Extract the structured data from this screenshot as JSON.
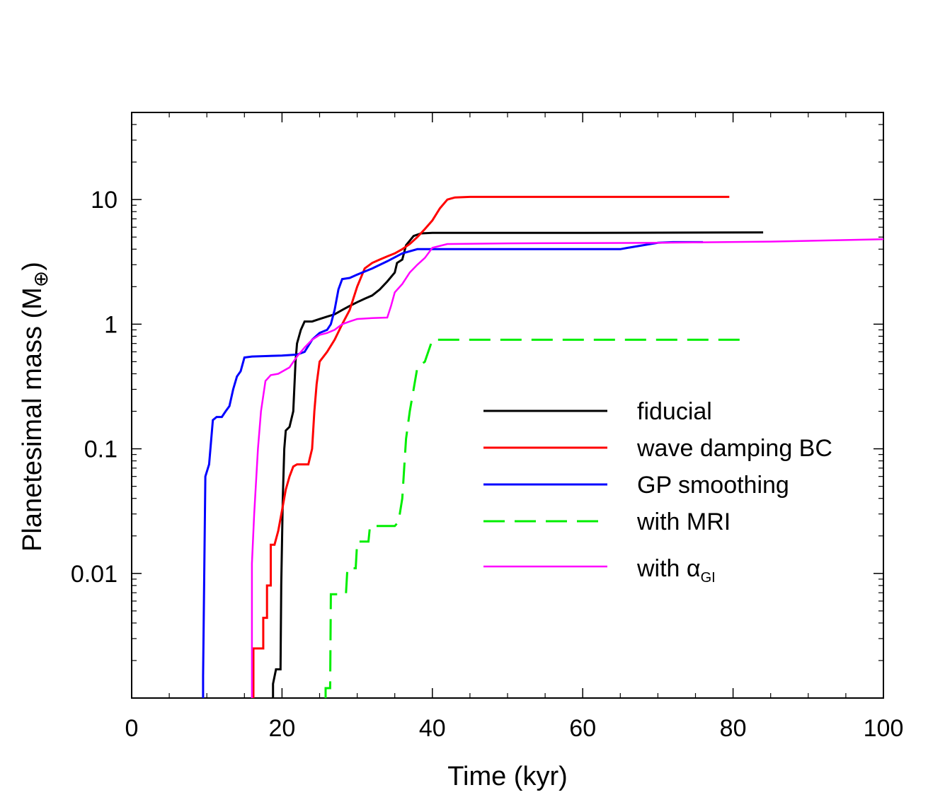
{
  "chart_data": {
    "type": "line",
    "title": "",
    "xlabel": "Time (kyr)",
    "ylabel_main": "Planetesimal mass (M",
    "ylabel_symbol": "⊕",
    "ylabel_close": ")",
    "xlim": [
      0,
      100
    ],
    "ylim": [
      0.001,
      50
    ],
    "yscale": "log",
    "x_ticks": [
      0,
      20,
      40,
      60,
      80,
      100
    ],
    "x_tick_labels": [
      "0",
      "20",
      "40",
      "60",
      "80",
      "100"
    ],
    "y_ticks": [
      0.01,
      0.1,
      1,
      10
    ],
    "y_tick_labels": [
      "0.01",
      "0.1",
      "1",
      "10"
    ],
    "legend_position": "center-right",
    "series": [
      {
        "name": "fiducial",
        "legend_label": "fiducial",
        "color": "#000000",
        "dash": "solid",
        "width": 3,
        "points": [
          [
            18.8,
            0.001
          ],
          [
            18.8,
            0.0013
          ],
          [
            19.2,
            0.0017
          ],
          [
            19.8,
            0.0017
          ],
          [
            19.9,
            0.008
          ],
          [
            20.1,
            0.04
          ],
          [
            20.3,
            0.1
          ],
          [
            20.5,
            0.14
          ],
          [
            21,
            0.15
          ],
          [
            21.5,
            0.2
          ],
          [
            21.8,
            0.5
          ],
          [
            22,
            0.7
          ],
          [
            22.5,
            0.9
          ],
          [
            23,
            1.05
          ],
          [
            24,
            1.05
          ],
          [
            25,
            1.1
          ],
          [
            26,
            1.15
          ],
          [
            27,
            1.2
          ],
          [
            28,
            1.3
          ],
          [
            29,
            1.4
          ],
          [
            30,
            1.5
          ],
          [
            31,
            1.6
          ],
          [
            32,
            1.7
          ],
          [
            33,
            1.9
          ],
          [
            34,
            2.2
          ],
          [
            35,
            2.6
          ],
          [
            35.3,
            3.1
          ],
          [
            36,
            3.3
          ],
          [
            36.5,
            4.3
          ],
          [
            37.5,
            5.1
          ],
          [
            38.5,
            5.35
          ],
          [
            40,
            5.4
          ],
          [
            60,
            5.4
          ],
          [
            84,
            5.45
          ]
        ]
      },
      {
        "name": "wave damping BC",
        "legend_label": "wave damping BC",
        "color": "#ff0000",
        "dash": "solid",
        "width": 3,
        "points": [
          [
            16.2,
            0.001
          ],
          [
            16.2,
            0.0025
          ],
          [
            17.5,
            0.0025
          ],
          [
            17.5,
            0.0044
          ],
          [
            18,
            0.0044
          ],
          [
            18,
            0.008
          ],
          [
            18.5,
            0.008
          ],
          [
            18.5,
            0.017
          ],
          [
            19,
            0.017
          ],
          [
            19.5,
            0.022
          ],
          [
            20,
            0.032
          ],
          [
            20.5,
            0.047
          ],
          [
            21,
            0.06
          ],
          [
            21.5,
            0.072
          ],
          [
            22,
            0.075
          ],
          [
            23.5,
            0.075
          ],
          [
            24,
            0.1
          ],
          [
            24.3,
            0.2
          ],
          [
            24.6,
            0.33
          ],
          [
            25,
            0.5
          ],
          [
            26,
            0.6
          ],
          [
            27,
            0.75
          ],
          [
            28,
            1.0
          ],
          [
            29,
            1.3
          ],
          [
            30,
            2.0
          ],
          [
            31,
            2.8
          ],
          [
            32,
            3.1
          ],
          [
            33,
            3.3
          ],
          [
            34,
            3.5
          ],
          [
            35,
            3.7
          ],
          [
            36,
            4.0
          ],
          [
            37,
            4.4
          ],
          [
            38,
            5.0
          ],
          [
            39,
            5.8
          ],
          [
            40,
            6.8
          ],
          [
            41,
            8.5
          ],
          [
            42,
            10.0
          ],
          [
            43,
            10.4
          ],
          [
            45,
            10.5
          ],
          [
            60,
            10.5
          ],
          [
            79.5,
            10.5
          ]
        ]
      },
      {
        "name": "GP smoothing",
        "legend_label": "GP smoothing",
        "color": "#0000ff",
        "dash": "solid",
        "width": 3,
        "points": [
          [
            9.5,
            0.001
          ],
          [
            9.5,
            0.0015
          ],
          [
            9.8,
            0.06
          ],
          [
            10.3,
            0.075
          ],
          [
            10.8,
            0.17
          ],
          [
            11.3,
            0.18
          ],
          [
            12,
            0.18
          ],
          [
            12.5,
            0.2
          ],
          [
            13,
            0.22
          ],
          [
            13.5,
            0.3
          ],
          [
            14,
            0.38
          ],
          [
            14.5,
            0.42
          ],
          [
            15,
            0.54
          ],
          [
            16,
            0.55
          ],
          [
            20,
            0.56
          ],
          [
            22,
            0.57
          ],
          [
            23,
            0.6
          ],
          [
            24,
            0.75
          ],
          [
            25,
            0.85
          ],
          [
            26,
            0.9
          ],
          [
            26.5,
            1.0
          ],
          [
            27,
            1.3
          ],
          [
            27.5,
            1.9
          ],
          [
            28,
            2.3
          ],
          [
            29,
            2.35
          ],
          [
            30,
            2.5
          ],
          [
            32,
            2.8
          ],
          [
            34,
            3.2
          ],
          [
            36,
            3.7
          ],
          [
            38,
            4.0
          ],
          [
            45,
            4.0
          ],
          [
            65,
            4.0
          ],
          [
            66,
            4.1
          ],
          [
            70,
            4.5
          ],
          [
            72,
            4.55
          ],
          [
            76,
            4.55
          ]
        ]
      },
      {
        "name": "with MRI",
        "legend_label": "with MRI",
        "color": "#00ee00",
        "dash": "dashed",
        "width": 3,
        "points": [
          [
            25.8,
            0.001
          ],
          [
            25.8,
            0.0012
          ],
          [
            26.4,
            0.0012
          ],
          [
            26.5,
            0.0068
          ],
          [
            28.5,
            0.0068
          ],
          [
            28.7,
            0.011
          ],
          [
            29.8,
            0.011
          ],
          [
            30,
            0.018
          ],
          [
            31.5,
            0.018
          ],
          [
            31.7,
            0.024
          ],
          [
            35,
            0.024
          ],
          [
            35.5,
            0.026
          ],
          [
            36,
            0.04
          ],
          [
            36.5,
            0.12
          ],
          [
            37,
            0.2
          ],
          [
            37.5,
            0.3
          ],
          [
            38,
            0.45
          ],
          [
            39,
            0.5
          ],
          [
            40,
            0.75
          ],
          [
            60,
            0.75
          ],
          [
            81,
            0.75
          ]
        ]
      },
      {
        "name": "with alpha_GI",
        "legend_label": "with α",
        "legend_subscript": "GI",
        "color": "#ff00ff",
        "dash": "solid",
        "width": 2.5,
        "points": [
          [
            16,
            0.001
          ],
          [
            16,
            0.012
          ],
          [
            16.3,
            0.03
          ],
          [
            16.8,
            0.1
          ],
          [
            17.2,
            0.2
          ],
          [
            17.8,
            0.35
          ],
          [
            18.5,
            0.39
          ],
          [
            19.5,
            0.4
          ],
          [
            21,
            0.45
          ],
          [
            22,
            0.55
          ],
          [
            23,
            0.65
          ],
          [
            24,
            0.75
          ],
          [
            25,
            0.82
          ],
          [
            26,
            0.85
          ],
          [
            27,
            0.9
          ],
          [
            28,
            1.0
          ],
          [
            29,
            1.05
          ],
          [
            30,
            1.1
          ],
          [
            32,
            1.12
          ],
          [
            34,
            1.13
          ],
          [
            34.5,
            1.4
          ],
          [
            35,
            1.8
          ],
          [
            36,
            2.1
          ],
          [
            37,
            2.6
          ],
          [
            38,
            3.0
          ],
          [
            39,
            3.4
          ],
          [
            40,
            4.1
          ],
          [
            42,
            4.4
          ],
          [
            50,
            4.45
          ],
          [
            70,
            4.5
          ],
          [
            85,
            4.6
          ],
          [
            100,
            4.8
          ]
        ]
      }
    ]
  }
}
